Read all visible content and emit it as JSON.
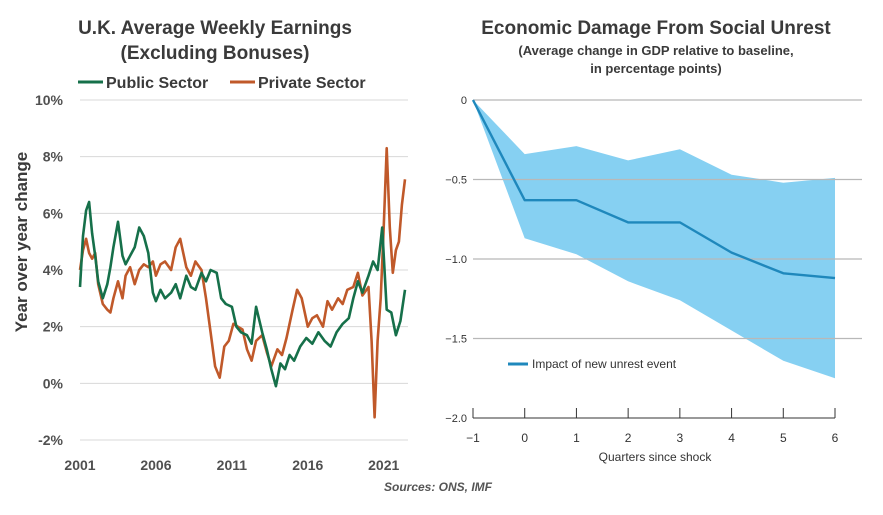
{
  "colors": {
    "public": "#16704a",
    "private": "#c0592a",
    "band": "#86d0f2",
    "impact": "#1f88bc",
    "grid": "#d8d8d8"
  },
  "source": "Sources: ONS, IMF",
  "chart_data": [
    {
      "type": "line",
      "title": "U.K. Average Weekly Earnings",
      "subtitle": "(Excluding Bonuses)",
      "ylabel": "Year over year change",
      "xlabel": "",
      "xlim": [
        2001,
        2022.6
      ],
      "ylim": [
        -2,
        10
      ],
      "xticks": [
        2001,
        2006,
        2011,
        2016,
        2021
      ],
      "x_tick_labels": [
        "2001",
        "2006",
        "2011",
        "2016",
        "2021"
      ],
      "yticks": [
        -2,
        0,
        2,
        4,
        6,
        8,
        10
      ],
      "y_tick_labels": [
        "-2%",
        "0%",
        "2%",
        "4%",
        "6%",
        "8%",
        "10%"
      ],
      "grid": true,
      "legend_position": "top",
      "series": [
        {
          "name": "Public Sector",
          "x": [
            2001.0,
            2001.2,
            2001.4,
            2001.6,
            2001.8,
            2002.0,
            2002.2,
            2002.5,
            2002.8,
            2003.0,
            2003.2,
            2003.5,
            2003.8,
            2004.0,
            2004.3,
            2004.6,
            2004.9,
            2005.2,
            2005.5,
            2005.8,
            2006.0,
            2006.3,
            2006.6,
            2007.0,
            2007.3,
            2007.6,
            2008.0,
            2008.3,
            2008.6,
            2009.0,
            2009.3,
            2009.6,
            2010.0,
            2010.3,
            2010.6,
            2011.0,
            2011.3,
            2011.6,
            2012.0,
            2012.3,
            2012.6,
            2013.0,
            2013.3,
            2013.6,
            2013.9,
            2014.2,
            2014.5,
            2014.8,
            2015.1,
            2015.5,
            2015.9,
            2016.3,
            2016.7,
            2017.1,
            2017.5,
            2017.9,
            2018.3,
            2018.7,
            2019.0,
            2019.3,
            2019.6,
            2020.0,
            2020.3,
            2020.6,
            2020.9,
            2021.2,
            2021.5,
            2021.8,
            2022.1,
            2022.4
          ],
          "values": [
            3.4,
            5.2,
            6.1,
            6.4,
            5.3,
            4.5,
            3.6,
            3.0,
            3.5,
            4.1,
            4.8,
            5.7,
            4.5,
            4.2,
            4.5,
            4.8,
            5.5,
            5.2,
            4.6,
            3.2,
            2.9,
            3.3,
            3.0,
            3.2,
            3.5,
            3.0,
            3.8,
            3.4,
            3.3,
            3.9,
            3.6,
            4.0,
            3.9,
            3.0,
            2.8,
            2.7,
            2.0,
            1.8,
            1.7,
            1.4,
            2.7,
            1.8,
            1.2,
            0.5,
            -0.1,
            0.7,
            0.5,
            1.0,
            0.8,
            1.3,
            1.6,
            1.4,
            1.8,
            1.5,
            1.3,
            1.8,
            2.1,
            2.3,
            3.0,
            3.6,
            3.2,
            3.8,
            4.3,
            4.0,
            5.5,
            2.6,
            2.5,
            1.7,
            2.2,
            3.3
          ]
        },
        {
          "name": "Private Sector",
          "x": [
            2001.0,
            2001.2,
            2001.4,
            2001.6,
            2001.8,
            2002.0,
            2002.2,
            2002.5,
            2002.8,
            2003.0,
            2003.2,
            2003.5,
            2003.8,
            2004.0,
            2004.3,
            2004.6,
            2004.9,
            2005.2,
            2005.5,
            2005.8,
            2006.0,
            2006.3,
            2006.6,
            2007.0,
            2007.3,
            2007.6,
            2008.0,
            2008.3,
            2008.6,
            2009.0,
            2009.3,
            2009.6,
            2009.9,
            2010.2,
            2010.5,
            2010.8,
            2011.1,
            2011.4,
            2011.7,
            2012.0,
            2012.3,
            2012.6,
            2013.0,
            2013.3,
            2013.6,
            2014.0,
            2014.3,
            2014.6,
            2015.0,
            2015.3,
            2015.6,
            2016.0,
            2016.3,
            2016.6,
            2017.0,
            2017.3,
            2017.6,
            2018.0,
            2018.3,
            2018.6,
            2019.0,
            2019.3,
            2019.6,
            2020.0,
            2020.2,
            2020.4,
            2020.6,
            2020.8,
            2021.0,
            2021.2,
            2021.4,
            2021.6,
            2021.8,
            2022.0,
            2022.2,
            2022.4
          ],
          "values": [
            4.0,
            4.7,
            5.1,
            4.6,
            4.4,
            4.6,
            3.5,
            2.8,
            2.6,
            2.5,
            3.0,
            3.6,
            3.0,
            3.8,
            4.1,
            3.5,
            4.0,
            4.2,
            4.1,
            4.3,
            3.8,
            4.2,
            4.3,
            4.0,
            4.8,
            5.1,
            4.1,
            3.8,
            4.3,
            4.0,
            3.0,
            1.8,
            0.6,
            0.2,
            1.3,
            1.5,
            2.1,
            2.0,
            1.9,
            1.2,
            0.8,
            1.5,
            1.7,
            1.1,
            0.6,
            1.2,
            1.0,
            1.6,
            2.6,
            3.3,
            3.0,
            2.0,
            2.3,
            2.4,
            2.0,
            2.9,
            2.6,
            3.0,
            2.8,
            3.3,
            3.4,
            3.9,
            3.1,
            3.4,
            1.5,
            -1.2,
            1.5,
            3.0,
            5.5,
            8.3,
            5.5,
            3.9,
            4.7,
            5.0,
            6.3,
            7.2
          ]
        }
      ]
    },
    {
      "type": "area",
      "title": "Economic Damage From Social Unrest",
      "subtitle_lines": [
        "(Average change in GDP relative to baseline,",
        "in percentage points)"
      ],
      "xlabel": "Quarters since shock",
      "ylabel": "",
      "xlim": [
        -1,
        6
      ],
      "ylim": [
        -2,
        0
      ],
      "xticks": [
        -1,
        0,
        1,
        2,
        3,
        4,
        5,
        6
      ],
      "x_tick_labels": [
        "−1",
        "0",
        "1",
        "2",
        "3",
        "4",
        "5",
        "6"
      ],
      "yticks": [
        0,
        -0.5,
        -1,
        -1.5,
        -2
      ],
      "y_tick_labels": [
        "0",
        "−0.5",
        "−1.0",
        "−1.5",
        "−2.0"
      ],
      "grid": true,
      "legend_position": "bottom-left",
      "x": [
        -1,
        0,
        1,
        2,
        3,
        4,
        5,
        6
      ],
      "band_upper": [
        0,
        -0.34,
        -0.29,
        -0.38,
        -0.31,
        -0.47,
        -0.52,
        -0.49
      ],
      "band_lower": [
        0,
        -0.87,
        -0.97,
        -1.14,
        -1.26,
        -1.45,
        -1.64,
        -1.75
      ],
      "series": [
        {
          "name": "Impact of new unrest event",
          "values": [
            0,
            -0.63,
            -0.63,
            -0.77,
            -0.77,
            -0.96,
            -1.09,
            -1.12
          ]
        }
      ]
    }
  ]
}
